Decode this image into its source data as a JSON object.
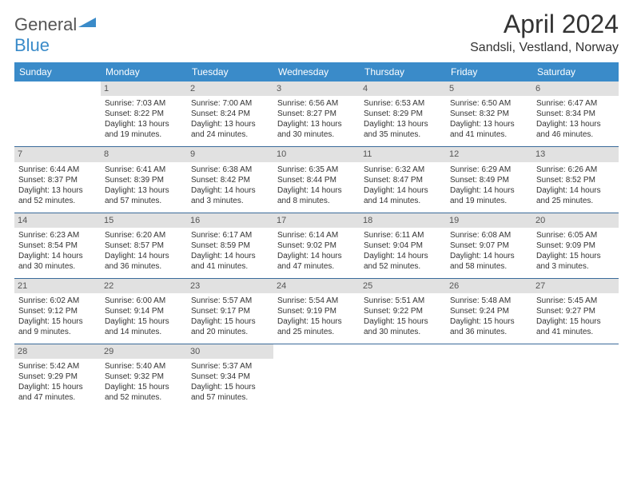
{
  "logo": {
    "text_part1": "General",
    "text_part2": "Blue"
  },
  "title": "April 2024",
  "location": "Sandsli, Vestland, Norway",
  "day_headers": [
    "Sunday",
    "Monday",
    "Tuesday",
    "Wednesday",
    "Thursday",
    "Friday",
    "Saturday"
  ],
  "colors": {
    "header_bg": "#3a8bc9",
    "daynum_bg": "#e1e1e1",
    "border": "#3a6a9a"
  },
  "weeks": [
    [
      {
        "num": "",
        "empty": true
      },
      {
        "num": "1",
        "sunrise": "Sunrise: 7:03 AM",
        "sunset": "Sunset: 8:22 PM",
        "daylight1": "Daylight: 13 hours",
        "daylight2": "and 19 minutes."
      },
      {
        "num": "2",
        "sunrise": "Sunrise: 7:00 AM",
        "sunset": "Sunset: 8:24 PM",
        "daylight1": "Daylight: 13 hours",
        "daylight2": "and 24 minutes."
      },
      {
        "num": "3",
        "sunrise": "Sunrise: 6:56 AM",
        "sunset": "Sunset: 8:27 PM",
        "daylight1": "Daylight: 13 hours",
        "daylight2": "and 30 minutes."
      },
      {
        "num": "4",
        "sunrise": "Sunrise: 6:53 AM",
        "sunset": "Sunset: 8:29 PM",
        "daylight1": "Daylight: 13 hours",
        "daylight2": "and 35 minutes."
      },
      {
        "num": "5",
        "sunrise": "Sunrise: 6:50 AM",
        "sunset": "Sunset: 8:32 PM",
        "daylight1": "Daylight: 13 hours",
        "daylight2": "and 41 minutes."
      },
      {
        "num": "6",
        "sunrise": "Sunrise: 6:47 AM",
        "sunset": "Sunset: 8:34 PM",
        "daylight1": "Daylight: 13 hours",
        "daylight2": "and 46 minutes."
      }
    ],
    [
      {
        "num": "7",
        "sunrise": "Sunrise: 6:44 AM",
        "sunset": "Sunset: 8:37 PM",
        "daylight1": "Daylight: 13 hours",
        "daylight2": "and 52 minutes."
      },
      {
        "num": "8",
        "sunrise": "Sunrise: 6:41 AM",
        "sunset": "Sunset: 8:39 PM",
        "daylight1": "Daylight: 13 hours",
        "daylight2": "and 57 minutes."
      },
      {
        "num": "9",
        "sunrise": "Sunrise: 6:38 AM",
        "sunset": "Sunset: 8:42 PM",
        "daylight1": "Daylight: 14 hours",
        "daylight2": "and 3 minutes."
      },
      {
        "num": "10",
        "sunrise": "Sunrise: 6:35 AM",
        "sunset": "Sunset: 8:44 PM",
        "daylight1": "Daylight: 14 hours",
        "daylight2": "and 8 minutes."
      },
      {
        "num": "11",
        "sunrise": "Sunrise: 6:32 AM",
        "sunset": "Sunset: 8:47 PM",
        "daylight1": "Daylight: 14 hours",
        "daylight2": "and 14 minutes."
      },
      {
        "num": "12",
        "sunrise": "Sunrise: 6:29 AM",
        "sunset": "Sunset: 8:49 PM",
        "daylight1": "Daylight: 14 hours",
        "daylight2": "and 19 minutes."
      },
      {
        "num": "13",
        "sunrise": "Sunrise: 6:26 AM",
        "sunset": "Sunset: 8:52 PM",
        "daylight1": "Daylight: 14 hours",
        "daylight2": "and 25 minutes."
      }
    ],
    [
      {
        "num": "14",
        "sunrise": "Sunrise: 6:23 AM",
        "sunset": "Sunset: 8:54 PM",
        "daylight1": "Daylight: 14 hours",
        "daylight2": "and 30 minutes."
      },
      {
        "num": "15",
        "sunrise": "Sunrise: 6:20 AM",
        "sunset": "Sunset: 8:57 PM",
        "daylight1": "Daylight: 14 hours",
        "daylight2": "and 36 minutes."
      },
      {
        "num": "16",
        "sunrise": "Sunrise: 6:17 AM",
        "sunset": "Sunset: 8:59 PM",
        "daylight1": "Daylight: 14 hours",
        "daylight2": "and 41 minutes."
      },
      {
        "num": "17",
        "sunrise": "Sunrise: 6:14 AM",
        "sunset": "Sunset: 9:02 PM",
        "daylight1": "Daylight: 14 hours",
        "daylight2": "and 47 minutes."
      },
      {
        "num": "18",
        "sunrise": "Sunrise: 6:11 AM",
        "sunset": "Sunset: 9:04 PM",
        "daylight1": "Daylight: 14 hours",
        "daylight2": "and 52 minutes."
      },
      {
        "num": "19",
        "sunrise": "Sunrise: 6:08 AM",
        "sunset": "Sunset: 9:07 PM",
        "daylight1": "Daylight: 14 hours",
        "daylight2": "and 58 minutes."
      },
      {
        "num": "20",
        "sunrise": "Sunrise: 6:05 AM",
        "sunset": "Sunset: 9:09 PM",
        "daylight1": "Daylight: 15 hours",
        "daylight2": "and 3 minutes."
      }
    ],
    [
      {
        "num": "21",
        "sunrise": "Sunrise: 6:02 AM",
        "sunset": "Sunset: 9:12 PM",
        "daylight1": "Daylight: 15 hours",
        "daylight2": "and 9 minutes."
      },
      {
        "num": "22",
        "sunrise": "Sunrise: 6:00 AM",
        "sunset": "Sunset: 9:14 PM",
        "daylight1": "Daylight: 15 hours",
        "daylight2": "and 14 minutes."
      },
      {
        "num": "23",
        "sunrise": "Sunrise: 5:57 AM",
        "sunset": "Sunset: 9:17 PM",
        "daylight1": "Daylight: 15 hours",
        "daylight2": "and 20 minutes."
      },
      {
        "num": "24",
        "sunrise": "Sunrise: 5:54 AM",
        "sunset": "Sunset: 9:19 PM",
        "daylight1": "Daylight: 15 hours",
        "daylight2": "and 25 minutes."
      },
      {
        "num": "25",
        "sunrise": "Sunrise: 5:51 AM",
        "sunset": "Sunset: 9:22 PM",
        "daylight1": "Daylight: 15 hours",
        "daylight2": "and 30 minutes."
      },
      {
        "num": "26",
        "sunrise": "Sunrise: 5:48 AM",
        "sunset": "Sunset: 9:24 PM",
        "daylight1": "Daylight: 15 hours",
        "daylight2": "and 36 minutes."
      },
      {
        "num": "27",
        "sunrise": "Sunrise: 5:45 AM",
        "sunset": "Sunset: 9:27 PM",
        "daylight1": "Daylight: 15 hours",
        "daylight2": "and 41 minutes."
      }
    ],
    [
      {
        "num": "28",
        "sunrise": "Sunrise: 5:42 AM",
        "sunset": "Sunset: 9:29 PM",
        "daylight1": "Daylight: 15 hours",
        "daylight2": "and 47 minutes."
      },
      {
        "num": "29",
        "sunrise": "Sunrise: 5:40 AM",
        "sunset": "Sunset: 9:32 PM",
        "daylight1": "Daylight: 15 hours",
        "daylight2": "and 52 minutes."
      },
      {
        "num": "30",
        "sunrise": "Sunrise: 5:37 AM",
        "sunset": "Sunset: 9:34 PM",
        "daylight1": "Daylight: 15 hours",
        "daylight2": "and 57 minutes."
      },
      {
        "num": "",
        "empty": true
      },
      {
        "num": "",
        "empty": true
      },
      {
        "num": "",
        "empty": true
      },
      {
        "num": "",
        "empty": true
      }
    ]
  ]
}
